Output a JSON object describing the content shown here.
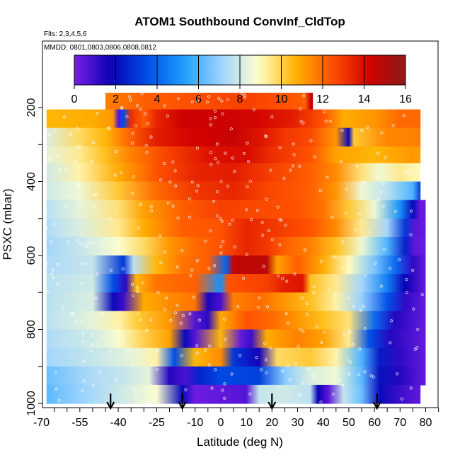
{
  "chart_data": {
    "type": "heatmap",
    "title": "ATOM1 Southbound ConvInf_CldTop",
    "flights_label": "Flts: 2,3,4,5,6",
    "dates_label": "MMDD: 0801,0803,0806,0808,0812",
    "xlabel": "Latitude (deg N)",
    "ylabel": "PSXC (mbar)",
    "xlim": [
      -70,
      85
    ],
    "ylim": [
      1000,
      100
    ],
    "x_ticks": [
      -70,
      -55,
      -40,
      -25,
      -10,
      0,
      10,
      20,
      30,
      40,
      50,
      60,
      70,
      80
    ],
    "y_ticks": [
      200,
      400,
      600,
      800,
      1000
    ],
    "colorbar": {
      "ticks": [
        0,
        2,
        4,
        6,
        8,
        10,
        12,
        14,
        16
      ],
      "range": [
        0,
        16
      ],
      "colors": [
        "#7a1fe6",
        "#0a00b4",
        "#0050e6",
        "#1ea0ff",
        "#9fd4ff",
        "#ffffcc",
        "#ffb400",
        "#ff5000",
        "#d20000",
        "#8b1a1a"
      ]
    },
    "arrow_latitudes": [
      -43,
      -15,
      20,
      61
    ],
    "rows": [
      {
        "p_top": 160,
        "p_bot": 205,
        "x0": -45,
        "x1": 36,
        "stops": [
          [
            -45,
            11.6
          ],
          [
            -30,
            12.2
          ],
          [
            -10,
            12.5
          ],
          [
            10,
            12.8
          ],
          [
            25,
            12.4
          ],
          [
            33,
            12.2
          ],
          [
            35,
            14.5
          ],
          [
            36,
            14.5
          ]
        ]
      },
      {
        "p_top": 205,
        "p_bot": 255,
        "x0": -68,
        "x1": 78,
        "stops": [
          [
            -68,
            10.6
          ],
          [
            -50,
            10.8
          ],
          [
            -42,
            11.2
          ],
          [
            -40,
            0.5
          ],
          [
            -38,
            3.5
          ],
          [
            -35,
            13.2
          ],
          [
            -30,
            12.2
          ],
          [
            -25,
            13.4
          ],
          [
            -15,
            14.3
          ],
          [
            0,
            14.4
          ],
          [
            15,
            14.1
          ],
          [
            28,
            13.6
          ],
          [
            40,
            12.4
          ],
          [
            48,
            10.8
          ],
          [
            60,
            11.2
          ],
          [
            70,
            12
          ],
          [
            78,
            12
          ]
        ]
      },
      {
        "p_top": 255,
        "p_bot": 305,
        "x0": -68,
        "x1": 78,
        "stops": [
          [
            -68,
            8.2
          ],
          [
            -55,
            9.8
          ],
          [
            -45,
            10.6
          ],
          [
            -35,
            12.2
          ],
          [
            -25,
            13.6
          ],
          [
            -10,
            14.2
          ],
          [
            5,
            14.5
          ],
          [
            15,
            13.8
          ],
          [
            25,
            13
          ],
          [
            35,
            12.6
          ],
          [
            45,
            11.2
          ],
          [
            50,
            2
          ],
          [
            52,
            10.2
          ],
          [
            65,
            11.5
          ],
          [
            78,
            11.6
          ]
        ]
      },
      {
        "p_top": 305,
        "p_bot": 350,
        "x0": -68,
        "x1": 78,
        "stops": [
          [
            -68,
            8.4
          ],
          [
            -55,
            9.4
          ],
          [
            -45,
            10.4
          ],
          [
            -35,
            11.6
          ],
          [
            -20,
            12.8
          ],
          [
            -5,
            13.8
          ],
          [
            10,
            14
          ],
          [
            20,
            13.2
          ],
          [
            35,
            12.4
          ],
          [
            45,
            11
          ],
          [
            60,
            10.6
          ],
          [
            75,
            11.2
          ],
          [
            78,
            11
          ]
        ]
      },
      {
        "p_top": 350,
        "p_bot": 400,
        "x0": -68,
        "x1": 78,
        "stops": [
          [
            -68,
            8
          ],
          [
            -55,
            9.2
          ],
          [
            -40,
            10.8
          ],
          [
            -25,
            12.4
          ],
          [
            -10,
            13.4
          ],
          [
            5,
            13.6
          ],
          [
            20,
            12.8
          ],
          [
            35,
            12.2
          ],
          [
            45,
            11.4
          ],
          [
            55,
            9.6
          ],
          [
            62,
            8.6
          ],
          [
            70,
            9.4
          ],
          [
            78,
            9
          ]
        ]
      },
      {
        "p_top": 400,
        "p_bot": 450,
        "x0": -68,
        "x1": 78,
        "stops": [
          [
            -68,
            8
          ],
          [
            -55,
            8.6
          ],
          [
            -40,
            10.2
          ],
          [
            -25,
            12
          ],
          [
            -10,
            13
          ],
          [
            5,
            13.4
          ],
          [
            20,
            12.6
          ],
          [
            35,
            12.2
          ],
          [
            45,
            11.2
          ],
          [
            55,
            8.6
          ],
          [
            65,
            7.6
          ],
          [
            75,
            6
          ],
          [
            78,
            3
          ]
        ]
      },
      {
        "p_top": 450,
        "p_bot": 500,
        "x0": -68,
        "x1": 80,
        "stops": [
          [
            -68,
            7.6
          ],
          [
            -55,
            8.4
          ],
          [
            -40,
            9.6
          ],
          [
            -30,
            11
          ],
          [
            -15,
            12.2
          ],
          [
            0,
            12.8
          ],
          [
            15,
            12.6
          ],
          [
            30,
            12.4
          ],
          [
            40,
            11.8
          ],
          [
            50,
            10.2
          ],
          [
            60,
            8.6
          ],
          [
            70,
            5
          ],
          [
            75,
            2
          ],
          [
            78,
            0.3
          ],
          [
            80,
            0.3
          ]
        ]
      },
      {
        "p_top": 500,
        "p_bot": 550,
        "x0": -68,
        "x1": 80,
        "stops": [
          [
            -68,
            7.4
          ],
          [
            -55,
            8.2
          ],
          [
            -40,
            9.4
          ],
          [
            -30,
            10.8
          ],
          [
            -15,
            12.2
          ],
          [
            0,
            12.4
          ],
          [
            10,
            13.4
          ],
          [
            20,
            13
          ],
          [
            35,
            12.4
          ],
          [
            45,
            11.4
          ],
          [
            55,
            9.4
          ],
          [
            65,
            7.2
          ],
          [
            72,
            3
          ],
          [
            76,
            0.5
          ],
          [
            80,
            0.3
          ]
        ]
      },
      {
        "p_top": 550,
        "p_bot": 600,
        "x0": -68,
        "x1": 80,
        "stops": [
          [
            -68,
            7.2
          ],
          [
            -55,
            7.8
          ],
          [
            -40,
            8.8
          ],
          [
            -30,
            9.8
          ],
          [
            -20,
            11.2
          ],
          [
            -10,
            12
          ],
          [
            0,
            12.4
          ],
          [
            10,
            13.4
          ],
          [
            18,
            13
          ],
          [
            25,
            12.2
          ],
          [
            35,
            11.6
          ],
          [
            45,
            10.4
          ],
          [
            55,
            8.6
          ],
          [
            65,
            6
          ],
          [
            72,
            2.5
          ],
          [
            76,
            0.4
          ],
          [
            80,
            0.3
          ]
        ]
      },
      {
        "p_top": 600,
        "p_bot": 650,
        "x0": -68,
        "x1": 80,
        "stops": [
          [
            -68,
            7.4
          ],
          [
            -50,
            7.8
          ],
          [
            -38,
            3
          ],
          [
            -34,
            7.6
          ],
          [
            -25,
            10.6
          ],
          [
            -15,
            11.8
          ],
          [
            -5,
            12.2
          ],
          [
            2,
            4
          ],
          [
            5,
            14.6
          ],
          [
            18,
            14.8
          ],
          [
            22,
            11
          ],
          [
            30,
            12.2
          ],
          [
            40,
            10.8
          ],
          [
            50,
            9
          ],
          [
            60,
            6.6
          ],
          [
            68,
            4.2
          ],
          [
            75,
            1.2
          ],
          [
            80,
            0.3
          ]
        ]
      },
      {
        "p_top": 650,
        "p_bot": 700,
        "x0": -68,
        "x1": 80,
        "stops": [
          [
            -68,
            7.6
          ],
          [
            -50,
            8
          ],
          [
            -42,
            3.5
          ],
          [
            -37,
            1.2
          ],
          [
            -33,
            10.6
          ],
          [
            -25,
            11.8
          ],
          [
            -10,
            12.2
          ],
          [
            0,
            5
          ],
          [
            3,
            12.4
          ],
          [
            18,
            12.8
          ],
          [
            25,
            13.6
          ],
          [
            32,
            13.8
          ],
          [
            35,
            10.4
          ],
          [
            45,
            9.4
          ],
          [
            55,
            7.2
          ],
          [
            65,
            4.6
          ],
          [
            72,
            1.8
          ],
          [
            80,
            0.3
          ]
        ]
      },
      {
        "p_top": 700,
        "p_bot": 750,
        "x0": -68,
        "x1": 80,
        "stops": [
          [
            -68,
            7.6
          ],
          [
            -50,
            8.2
          ],
          [
            -42,
            2
          ],
          [
            -38,
            1
          ],
          [
            -30,
            10.8
          ],
          [
            -20,
            11.4
          ],
          [
            -10,
            11.8
          ],
          [
            -5,
            1.5
          ],
          [
            0,
            0.8
          ],
          [
            5,
            11.6
          ],
          [
            15,
            12
          ],
          [
            25,
            11.2
          ],
          [
            35,
            10.4
          ],
          [
            45,
            9.2
          ],
          [
            55,
            7
          ],
          [
            65,
            3.6
          ],
          [
            72,
            1.2
          ],
          [
            80,
            0.3
          ]
        ]
      },
      {
        "p_top": 750,
        "p_bot": 800,
        "x0": -68,
        "x1": 80,
        "stops": [
          [
            -68,
            7.6
          ],
          [
            -50,
            8.4
          ],
          [
            -40,
            9.2
          ],
          [
            -32,
            10.2
          ],
          [
            -20,
            11.2
          ],
          [
            -10,
            0.6
          ],
          [
            -5,
            1.2
          ],
          [
            0,
            10.8
          ],
          [
            10,
            12.4
          ],
          [
            20,
            12
          ],
          [
            30,
            11.2
          ],
          [
            40,
            10.4
          ],
          [
            50,
            9.6
          ],
          [
            60,
            4.2
          ],
          [
            68,
            1.4
          ],
          [
            80,
            0.3
          ]
        ]
      },
      {
        "p_top": 800,
        "p_bot": 850,
        "x0": -68,
        "x1": 80,
        "stops": [
          [
            -68,
            7.4
          ],
          [
            -50,
            8
          ],
          [
            -40,
            8.8
          ],
          [
            -30,
            10
          ],
          [
            -20,
            11
          ],
          [
            -14,
            2
          ],
          [
            -10,
            0.6
          ],
          [
            0,
            10.6
          ],
          [
            8,
            0.4
          ],
          [
            12,
            1
          ],
          [
            18,
            10.8
          ],
          [
            30,
            11.6
          ],
          [
            40,
            11
          ],
          [
            50,
            9.4
          ],
          [
            58,
            3.6
          ],
          [
            66,
            1.4
          ],
          [
            80,
            0.3
          ]
        ]
      },
      {
        "p_top": 850,
        "p_bot": 900,
        "x0": -68,
        "x1": 80,
        "stops": [
          [
            -68,
            7.2
          ],
          [
            -50,
            7.8
          ],
          [
            -35,
            8.4
          ],
          [
            -25,
            9.2
          ],
          [
            -18,
            3.5
          ],
          [
            -10,
            10.6
          ],
          [
            0,
            11.4
          ],
          [
            5,
            3
          ],
          [
            15,
            1.6
          ],
          [
            22,
            9.8
          ],
          [
            35,
            10.2
          ],
          [
            45,
            9.2
          ],
          [
            55,
            6
          ],
          [
            62,
            2.4
          ],
          [
            70,
            1.2
          ],
          [
            80,
            0.3
          ]
        ]
      },
      {
        "p_top": 900,
        "p_bot": 950,
        "x0": -68,
        "x1": 80,
        "stops": [
          [
            -68,
            6.4
          ],
          [
            -50,
            7.4
          ],
          [
            -38,
            7.8
          ],
          [
            -28,
            8.4
          ],
          [
            -20,
            1.4
          ],
          [
            -14,
            0.8
          ],
          [
            -8,
            2.6
          ],
          [
            0,
            3.4
          ],
          [
            15,
            3.2
          ],
          [
            25,
            6.8
          ],
          [
            35,
            8.2
          ],
          [
            45,
            8.6
          ],
          [
            55,
            6.2
          ],
          [
            62,
            2.2
          ],
          [
            70,
            1.4
          ],
          [
            80,
            0.3
          ]
        ]
      },
      {
        "p_top": 950,
        "p_bot": 1000,
        "x0": -68,
        "x1": 78,
        "stops": [
          [
            -68,
            6.2
          ],
          [
            -55,
            7
          ],
          [
            -45,
            7.6
          ],
          [
            -35,
            8.2
          ],
          [
            -25,
            8.8
          ],
          [
            -15,
            2
          ],
          [
            -10,
            0.2
          ],
          [
            0,
            0.4
          ],
          [
            10,
            0.6
          ],
          [
            15,
            7.8
          ],
          [
            25,
            8
          ],
          [
            35,
            7.6
          ],
          [
            38,
            1.8
          ],
          [
            42,
            0.5
          ],
          [
            48,
            7.8
          ],
          [
            55,
            6.4
          ],
          [
            62,
            2
          ],
          [
            70,
            1
          ],
          [
            78,
            0.4
          ]
        ]
      }
    ]
  }
}
